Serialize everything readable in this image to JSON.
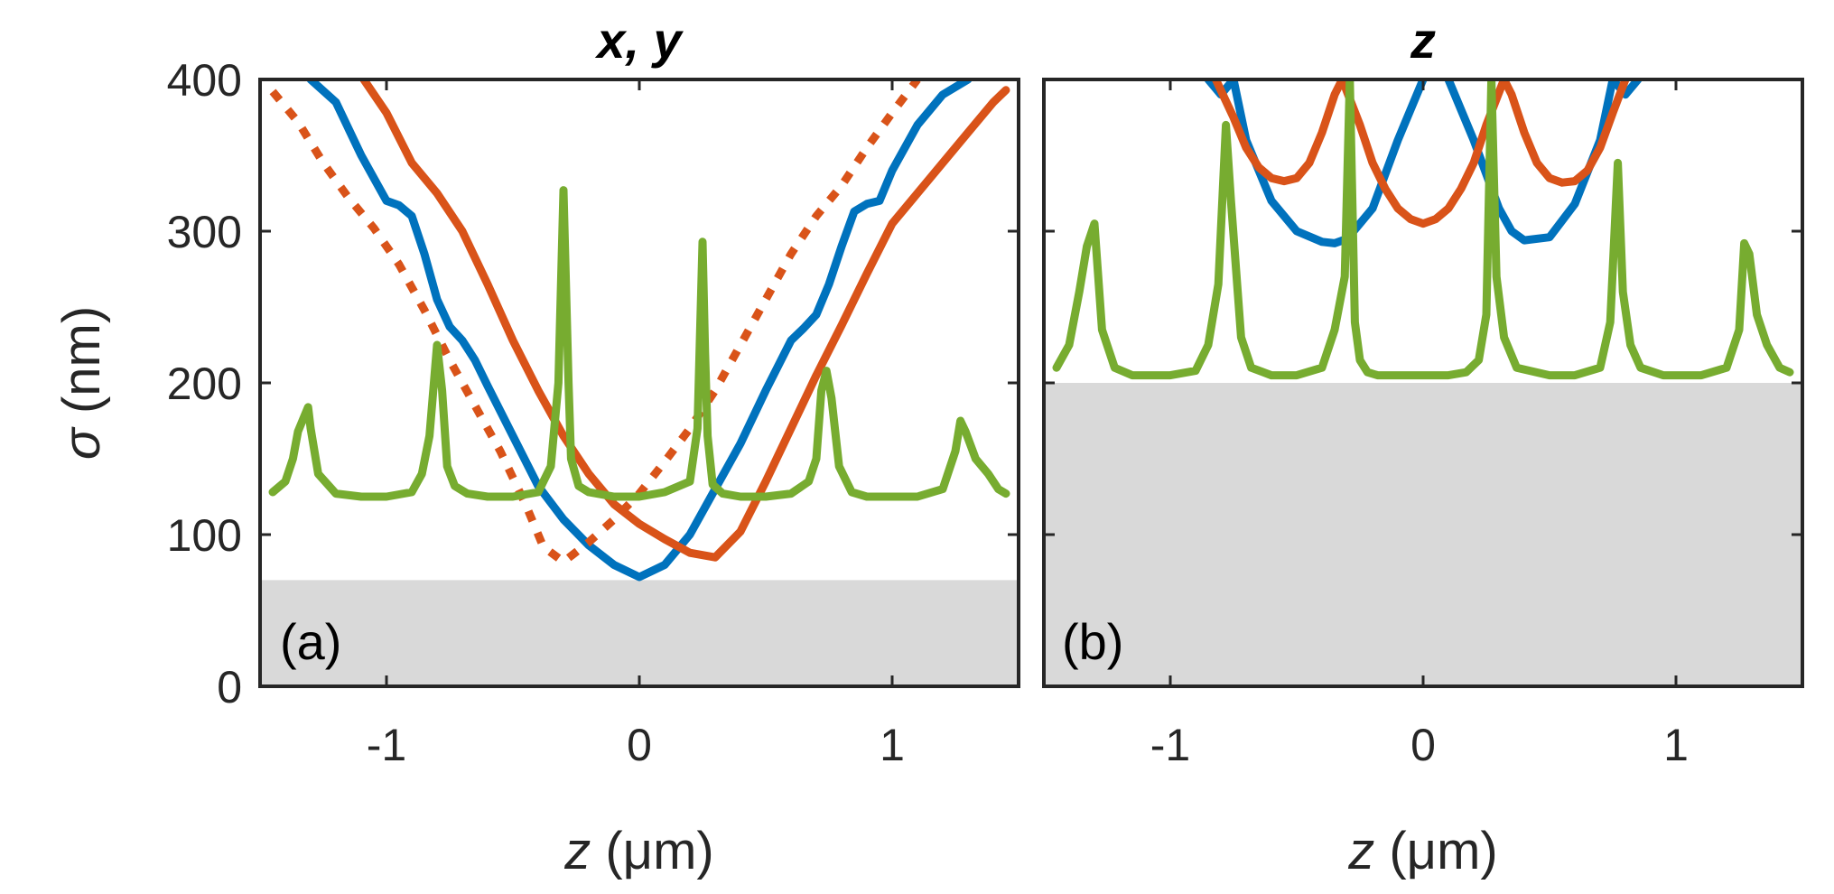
{
  "chart_data": [
    {
      "type": "line",
      "panel_label": "(a)",
      "title": "x, y",
      "xlabel_var": "z",
      "xlabel_unit": " (μm)",
      "ylabel_var": "σ",
      "ylabel_unit": " (nm)",
      "xlim": [
        -1.5,
        1.5
      ],
      "ylim": [
        0,
        400
      ],
      "x_ticks": [
        -1,
        0,
        1
      ],
      "x_tick_labels": [
        "-1",
        "0",
        "1"
      ],
      "y_ticks": [
        0,
        100,
        200,
        300,
        400
      ],
      "y_tick_labels": [
        "0",
        "100",
        "200",
        "300",
        "400"
      ],
      "shaded_region": {
        "y_from": 0,
        "y_to": 70,
        "color": "#d9d9d9"
      },
      "series": [
        {
          "name": "blue",
          "color": "#0072bd",
          "style": "solid",
          "x": [
            -1.3,
            -1.2,
            -1.1,
            -1.0,
            -0.95,
            -0.9,
            -0.85,
            -0.8,
            -0.75,
            -0.7,
            -0.65,
            -0.6,
            -0.5,
            -0.4,
            -0.3,
            -0.2,
            -0.1,
            0.0,
            0.1,
            0.2,
            0.3,
            0.4,
            0.5,
            0.6,
            0.65,
            0.7,
            0.75,
            0.8,
            0.85,
            0.9,
            0.95,
            1.0,
            1.1,
            1.2,
            1.3
          ],
          "y": [
            400,
            385,
            350,
            320,
            317,
            310,
            285,
            255,
            237,
            228,
            215,
            198,
            165,
            132,
            110,
            93,
            80,
            72,
            80,
            100,
            130,
            160,
            195,
            228,
            236,
            245,
            265,
            290,
            313,
            318,
            320,
            340,
            370,
            390,
            400
          ]
        },
        {
          "name": "orange",
          "color": "#d95319",
          "style": "solid",
          "x": [
            -1.09,
            -1.0,
            -0.9,
            -0.8,
            -0.7,
            -0.6,
            -0.5,
            -0.4,
            -0.3,
            -0.2,
            -0.1,
            0.0,
            0.1,
            0.2,
            0.3,
            0.4,
            0.5,
            0.6,
            0.7,
            0.8,
            0.9,
            1.0,
            1.1,
            1.2,
            1.3,
            1.4,
            1.45
          ],
          "y": [
            400,
            378,
            345,
            325,
            300,
            265,
            228,
            195,
            165,
            140,
            120,
            107,
            97,
            88,
            85,
            102,
            135,
            170,
            205,
            238,
            272,
            305,
            325,
            345,
            365,
            385,
            393
          ]
        },
        {
          "name": "orange-dotted",
          "color": "#d95319",
          "style": "dotted",
          "x": [
            -1.45,
            -1.35,
            -1.25,
            -1.15,
            -1.05,
            -0.95,
            -0.85,
            -0.75,
            -0.65,
            -0.55,
            -0.45,
            -0.38,
            -0.3,
            -0.2,
            -0.1,
            0.0,
            0.1,
            0.2,
            0.3,
            0.4,
            0.5,
            0.6,
            0.7,
            0.8,
            0.9,
            1.0,
            1.1
          ],
          "y": [
            392,
            372,
            345,
            322,
            302,
            278,
            248,
            215,
            185,
            155,
            120,
            92,
            82,
            95,
            110,
            127,
            148,
            170,
            195,
            225,
            255,
            285,
            310,
            330,
            355,
            378,
            400
          ]
        },
        {
          "name": "green",
          "color": "#77ac30",
          "style": "solid",
          "x": [
            -1.45,
            -1.4,
            -1.37,
            -1.35,
            -1.31,
            -1.3,
            -1.27,
            -1.2,
            -1.1,
            -1.0,
            -0.9,
            -0.86,
            -0.83,
            -0.8,
            -0.78,
            -0.76,
            -0.73,
            -0.68,
            -0.6,
            -0.5,
            -0.4,
            -0.35,
            -0.32,
            -0.3,
            -0.28,
            -0.27,
            -0.24,
            -0.2,
            -0.1,
            0.0,
            0.1,
            0.2,
            0.23,
            0.25,
            0.26,
            0.27,
            0.29,
            0.33,
            0.4,
            0.5,
            0.6,
            0.67,
            0.7,
            0.72,
            0.74,
            0.76,
            0.79,
            0.84,
            0.9,
            1.0,
            1.1,
            1.2,
            1.25,
            1.27,
            1.29,
            1.33,
            1.38,
            1.42,
            1.45
          ],
          "y": [
            128,
            135,
            150,
            168,
            184,
            170,
            140,
            127,
            125,
            125,
            128,
            140,
            165,
            225,
            195,
            145,
            132,
            127,
            125,
            125,
            128,
            145,
            200,
            327,
            200,
            150,
            132,
            128,
            125,
            125,
            128,
            135,
            170,
            293,
            220,
            165,
            133,
            127,
            125,
            125,
            127,
            135,
            150,
            195,
            208,
            190,
            145,
            128,
            125,
            125,
            125,
            130,
            155,
            175,
            168,
            150,
            140,
            130,
            127
          ]
        }
      ]
    },
    {
      "type": "line",
      "panel_label": "(b)",
      "title": "z",
      "xlabel_var": "z",
      "xlabel_unit": " (μm)",
      "ylabel_var": "",
      "ylabel_unit": "",
      "xlim": [
        -1.5,
        1.5
      ],
      "ylim": [
        0,
        400
      ],
      "x_ticks": [
        -1,
        0,
        1
      ],
      "x_tick_labels": [
        "-1",
        "0",
        "1"
      ],
      "y_ticks": [
        0,
        100,
        200,
        300,
        400
      ],
      "y_tick_labels": [],
      "shaded_region": {
        "y_from": 0,
        "y_to": 200,
        "color": "#d9d9d9"
      },
      "series": [
        {
          "name": "blue-left",
          "color": "#0072bd",
          "style": "solid",
          "x": [
            -0.85,
            -0.8,
            -0.75,
            -0.7,
            -0.6,
            -0.5,
            -0.4,
            -0.35,
            -0.3,
            -0.2,
            -0.1,
            0.0
          ],
          "y": [
            400,
            390,
            400,
            360,
            320,
            300,
            293,
            292,
            295,
            315,
            360,
            400
          ]
        },
        {
          "name": "blue-right",
          "color": "#0072bd",
          "style": "solid",
          "x": [
            0.1,
            0.2,
            0.3,
            0.35,
            0.4,
            0.5,
            0.6,
            0.7,
            0.75,
            0.8,
            0.85
          ],
          "y": [
            400,
            360,
            315,
            300,
            294,
            296,
            318,
            360,
            400,
            390,
            400
          ]
        },
        {
          "name": "orange-1",
          "color": "#d95319",
          "style": "solid",
          "x": [
            -0.82,
            -0.75,
            -0.7,
            -0.65,
            -0.6,
            -0.55,
            -0.5,
            -0.45,
            -0.4,
            -0.35,
            -0.32
          ],
          "y": [
            400,
            375,
            355,
            342,
            335,
            333,
            335,
            345,
            365,
            390,
            400
          ]
        },
        {
          "name": "orange-2",
          "color": "#d95319",
          "style": "solid",
          "x": [
            -0.32,
            -0.25,
            -0.2,
            -0.15,
            -0.1,
            -0.05,
            0.0,
            0.05,
            0.1,
            0.15,
            0.2,
            0.25,
            0.32
          ],
          "y": [
            400,
            370,
            345,
            328,
            315,
            308,
            305,
            308,
            315,
            328,
            345,
            370,
            400
          ]
        },
        {
          "name": "orange-3",
          "color": "#d95319",
          "style": "solid",
          "x": [
            0.32,
            0.35,
            0.4,
            0.45,
            0.5,
            0.55,
            0.6,
            0.65,
            0.7,
            0.75,
            0.8
          ],
          "y": [
            400,
            390,
            365,
            345,
            335,
            332,
            333,
            340,
            355,
            378,
            400
          ]
        },
        {
          "name": "green",
          "color": "#77ac30",
          "style": "solid",
          "x": [
            -1.45,
            -1.4,
            -1.36,
            -1.33,
            -1.3,
            -1.27,
            -1.22,
            -1.15,
            -1.0,
            -0.9,
            -0.85,
            -0.81,
            -0.78,
            -0.76,
            -0.72,
            -0.68,
            -0.6,
            -0.5,
            -0.4,
            -0.35,
            -0.31,
            -0.29,
            -0.27,
            -0.25,
            -0.22,
            -0.18,
            -0.1,
            0.0,
            0.1,
            0.17,
            0.22,
            0.25,
            0.27,
            0.29,
            0.32,
            0.37,
            0.5,
            0.6,
            0.7,
            0.74,
            0.77,
            0.79,
            0.82,
            0.86,
            0.95,
            1.1,
            1.2,
            1.25,
            1.27,
            1.29,
            1.32,
            1.36,
            1.41,
            1.45
          ],
          "y": [
            210,
            225,
            260,
            290,
            305,
            235,
            210,
            205,
            205,
            208,
            225,
            265,
            370,
            320,
            230,
            210,
            205,
            205,
            210,
            235,
            270,
            400,
            240,
            215,
            207,
            205,
            205,
            205,
            205,
            207,
            215,
            245,
            400,
            270,
            230,
            210,
            205,
            205,
            210,
            240,
            345,
            260,
            225,
            210,
            205,
            205,
            210,
            235,
            292,
            285,
            245,
            225,
            210,
            207
          ]
        }
      ]
    }
  ]
}
